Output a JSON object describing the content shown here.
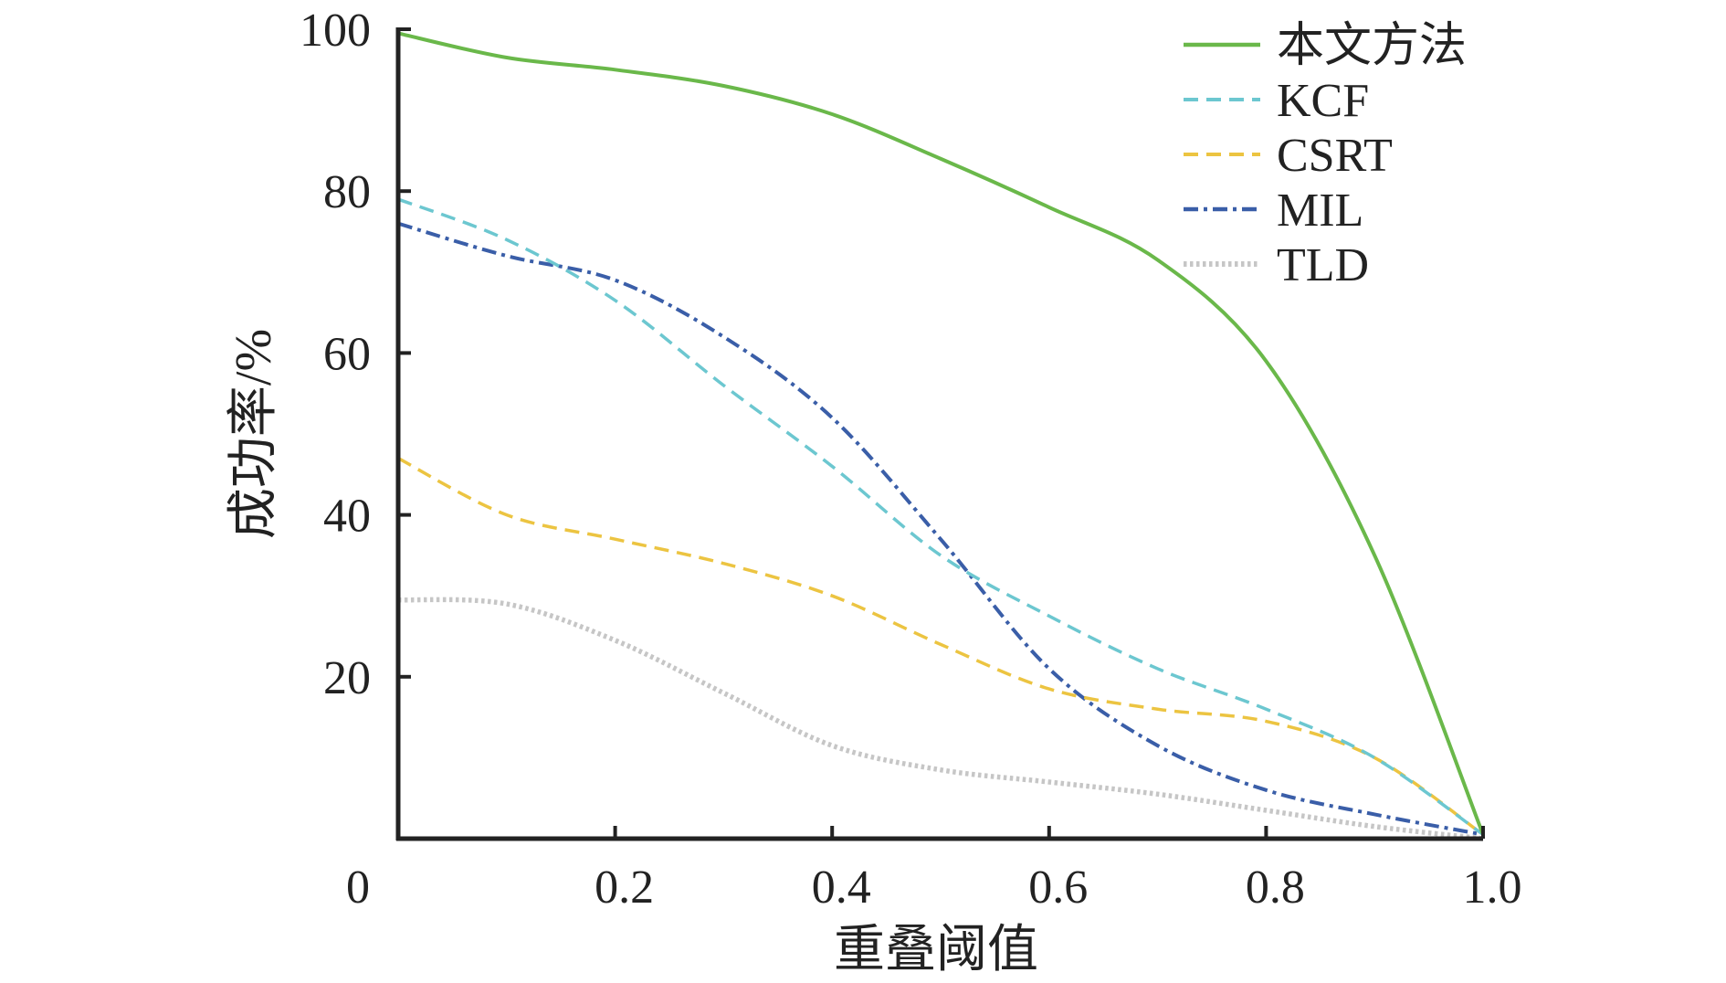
{
  "chart_data": {
    "type": "line",
    "title": "",
    "xlabel": "重叠阈值",
    "ylabel": "成功率/%",
    "xlim": [
      0,
      1.0
    ],
    "ylim": [
      0,
      100
    ],
    "x_ticks": [
      0,
      0.2,
      0.4,
      0.6,
      0.8,
      1.0
    ],
    "x_tick_labels": [
      "0",
      "0.2",
      "0.4",
      "0.6",
      "0.8",
      "1.0"
    ],
    "y_ticks": [
      20,
      40,
      60,
      80,
      100
    ],
    "y_tick_labels": [
      "20",
      "40",
      "60",
      "80",
      "100"
    ],
    "grid": false,
    "legend_position": "top-right",
    "x": [
      0,
      0.1,
      0.2,
      0.3,
      0.4,
      0.5,
      0.6,
      0.7,
      0.8,
      0.9,
      1.0
    ],
    "series": [
      {
        "name": "本文方法",
        "color": "#6ab84a",
        "dash": "solid",
        "values": [
          99.5,
          96.5,
          95,
          93,
          89.5,
          84,
          78,
          71.5,
          59,
          35,
          0.5
        ]
      },
      {
        "name": "KCF",
        "color": "#6cc7d0",
        "dash": "dashed",
        "values": [
          79,
          74,
          66.5,
          56,
          46,
          35,
          27.5,
          21,
          16,
          10,
          0.5
        ]
      },
      {
        "name": "CSRT",
        "color": "#ecc441",
        "dash": "dashed",
        "values": [
          47,
          40,
          37,
          34,
          30,
          24,
          18.5,
          16,
          14.5,
          10,
          0.5
        ]
      },
      {
        "name": "MIL",
        "color": "#3a5ea8",
        "dash": "dashdot",
        "values": [
          76,
          72,
          69,
          62,
          52,
          37,
          21,
          11.5,
          6,
          3,
          0.5
        ]
      },
      {
        "name": "TLD",
        "color": "#c6c6c6",
        "dash": "dotted",
        "values": [
          29.5,
          29,
          24.5,
          18,
          11.5,
          8.5,
          7,
          5.5,
          3.5,
          1.5,
          0
        ]
      }
    ]
  }
}
